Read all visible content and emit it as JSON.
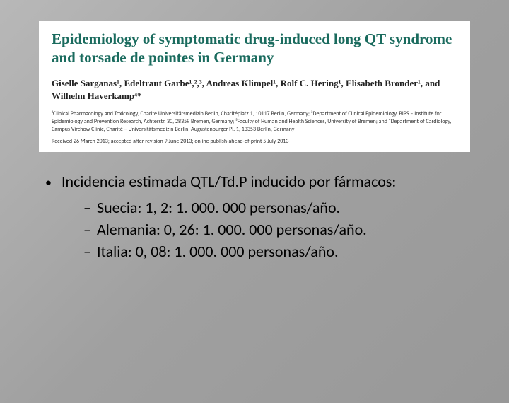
{
  "paper": {
    "title": "Epidemiology of symptomatic drug-induced long QT syndrome and torsade de pointes in Germany",
    "authors_html": "Giselle Sarganas¹, Edeltraut Garbe¹,²,³, Andreas Klimpel¹, Rolf C. Hering¹, Elisabeth Bronder¹, and Wilhelm Haverkamp⁴*",
    "affiliations": "¹Clinical Pharmacology and Toxicology, Charité Universitätsmedizin Berlin, Charitéplatz 1, 10117 Berlin, Germany; ²Department of Clinical Epidemiology, BIPS – Institute for Epidemiology and Prevention Research, Achterstr. 30, 28359 Bremen, Germany; ³Faculty of Human and Health Sciences, University of Bremen; and ⁴Department of Cardiology, Campus Virchow Clinic, Charité – Universitätsmedizin Berlin, Augustenburger Pl. 1, 13353 Berlin, Germany",
    "dates": "Received 26 March 2013; accepted after revision 9 June 2013; online publish-ahead-of-print 5 July 2013"
  },
  "content": {
    "main": "Incidencia estimada QTL/Td.P inducido por fármacos:",
    "items": [
      "Suecia: 1, 2: 1. 000. 000 personas/año.",
      "Alemania: 0, 26: 1. 000. 000 personas/año.",
      "Italia: 0, 08: 1. 000. 000 personas/año."
    ]
  },
  "colors": {
    "title_green": "#1a6b5e",
    "bg_gray": "#a8a8a8",
    "white": "#ffffff",
    "black": "#000000"
  }
}
